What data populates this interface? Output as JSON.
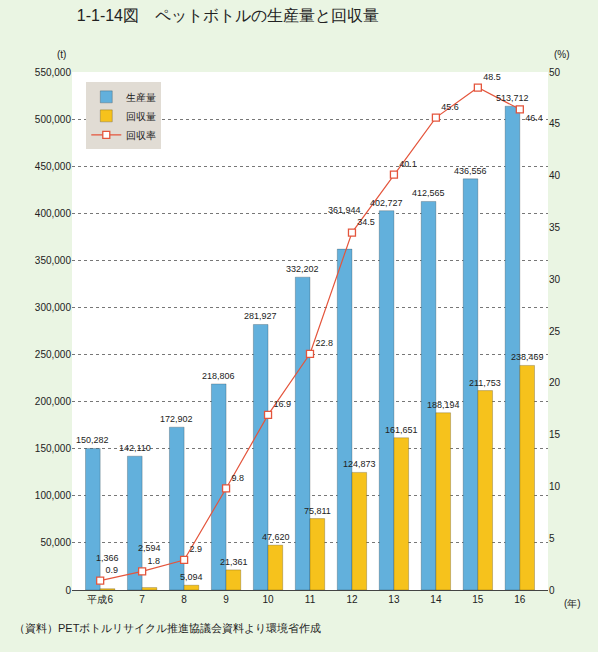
{
  "chart_data": {
    "type": "bar",
    "title": "1-1-14図　ペットボトルの生産量と回収量",
    "y_label": "(t)",
    "y2_label": "(%)",
    "x_label": "(年)",
    "categories": [
      "平成6",
      "7",
      "8",
      "9",
      "10",
      "11",
      "12",
      "13",
      "14",
      "15",
      "16"
    ],
    "series": [
      {
        "name": "生産量",
        "type": "bar",
        "color": "#62b0dc",
        "values": [
          150282,
          142110,
          172902,
          218806,
          281927,
          332202,
          361944,
          402727,
          412565,
          436556,
          513712
        ],
        "value_labels": [
          "150,282",
          "142,110",
          "172,902",
          "218,806",
          "281,927",
          "332,202",
          "361,944",
          "402,727",
          "412,565",
          "436,556",
          "513,712"
        ]
      },
      {
        "name": "回収量",
        "type": "bar",
        "color": "#f6c21c",
        "values": [
          1366,
          2594,
          5094,
          21361,
          47620,
          75811,
          124873,
          161651,
          188194,
          211753,
          238469
        ],
        "value_labels": [
          "1,366",
          "2,594",
          "5,094",
          "21,361",
          "47,620",
          "75,811",
          "124,873",
          "161,651",
          "188,194",
          "211,753",
          "238,469"
        ]
      },
      {
        "name": "回収率",
        "type": "line",
        "axis": "y2",
        "color": "#e4553c",
        "marker": "square",
        "values": [
          0.9,
          1.8,
          2.9,
          9.8,
          16.9,
          22.8,
          34.5,
          40.1,
          45.6,
          48.5,
          46.4
        ]
      }
    ],
    "ylim": [
      0,
      550000
    ],
    "yticks": [
      0,
      {
        "value": 50000,
        "label": "50,000"
      },
      {
        "value": 100000,
        "label": "100,000"
      },
      {
        "value": 150000,
        "label": "150,000"
      },
      {
        "value": 200000,
        "label": "200,000"
      },
      {
        "value": 250000,
        "label": "250,000"
      },
      {
        "value": 300000,
        "label": "300,000"
      },
      {
        "value": 350000,
        "label": "350,000"
      },
      {
        "value": 400000,
        "label": "400,000"
      },
      {
        "value": 450000,
        "label": "450,000"
      },
      {
        "value": 500000,
        "label": "500,000"
      },
      {
        "value": 550000,
        "label": "550,000"
      }
    ],
    "y2lim": [
      0,
      50
    ],
    "y2ticks": [
      0,
      5,
      10,
      15,
      20,
      25,
      30,
      35,
      40,
      45,
      50
    ],
    "grid": true,
    "legend": "upper left",
    "data_labels": true,
    "annotations": [
      "（資料）PETボトルリサイクル推進協議会資料より環境省作成"
    ]
  }
}
